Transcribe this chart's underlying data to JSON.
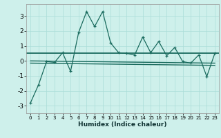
{
  "xlabel": "Humidex (Indice chaleur)",
  "x_values": [
    0,
    1,
    2,
    3,
    4,
    5,
    6,
    7,
    8,
    9,
    10,
    11,
    12,
    13,
    14,
    15,
    16,
    17,
    18,
    19,
    20,
    21,
    22,
    23
  ],
  "y_line": [
    -2.8,
    -1.6,
    -0.05,
    -0.1,
    0.55,
    -0.7,
    1.9,
    3.3,
    2.3,
    3.3,
    1.2,
    0.55,
    0.5,
    0.4,
    1.6,
    0.55,
    1.3,
    0.35,
    0.9,
    -0.05,
    -0.15,
    0.4,
    -1.05,
    0.5
  ],
  "line_color": "#1a6b5e",
  "bg_color": "#cef0eb",
  "grid_color": "#aaddd8",
  "ylim": [
    -3.5,
    3.8
  ],
  "xlim": [
    -0.5,
    23.5
  ],
  "trend1_y": 0.5,
  "trend2_x": [
    0,
    23
  ],
  "trend2_y": [
    0.0,
    -0.15
  ],
  "trend3_x": [
    0,
    23
  ],
  "trend3_y": [
    -0.15,
    -0.3
  ]
}
